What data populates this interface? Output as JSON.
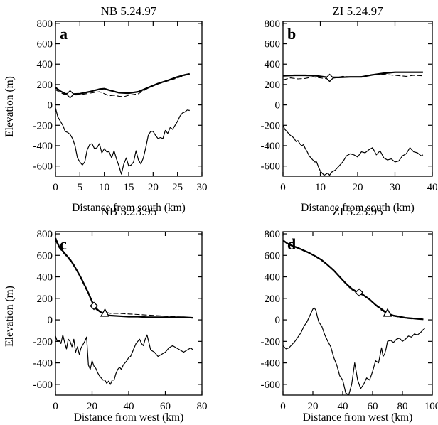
{
  "chart_data": [
    {
      "type": "line",
      "panel_letter": "a",
      "title": "NB 5.24.97",
      "xlabel": "Distance from south (km)",
      "ylabel": "Elevation (m)",
      "xlim": [
        0,
        30
      ],
      "ylim": [
        -700,
        820
      ],
      "xticks": [
        0,
        5,
        10,
        15,
        20,
        25,
        30
      ],
      "yticks": [
        800,
        600,
        400,
        200,
        0,
        -200,
        -400,
        -600
      ],
      "series": [
        {
          "role": "surface",
          "style": "solid-thick",
          "x": [
            0,
            1,
            2,
            3,
            5,
            7,
            9,
            10,
            11,
            13,
            15,
            17,
            19,
            21,
            23,
            25,
            26.5,
            27.5
          ],
          "y": [
            170,
            135,
            110,
            105,
            110,
            130,
            155,
            160,
            145,
            120,
            115,
            130,
            170,
            210,
            240,
            275,
            295,
            305
          ]
        },
        {
          "role": "surface-alt",
          "style": "dashed",
          "x": [
            0,
            1,
            2,
            3,
            5,
            7,
            9,
            10,
            11,
            12,
            13,
            14,
            15,
            17,
            19,
            21,
            23,
            25,
            26.5,
            27.5
          ],
          "y": [
            150,
            120,
            100,
            95,
            100,
            115,
            130,
            110,
            90,
            95,
            85,
            80,
            95,
            110,
            165,
            205,
            235,
            265,
            290,
            300
          ]
        },
        {
          "role": "bed",
          "style": "solid-thin",
          "x": [
            0,
            0.5,
            1,
            1.5,
            2,
            2.5,
            3,
            3.5,
            4,
            4.5,
            5,
            5.5,
            6,
            6.5,
            7,
            7.5,
            8,
            8.5,
            9,
            9.5,
            10,
            10.5,
            11,
            11.5,
            12,
            12.5,
            13,
            13.5,
            14,
            14.5,
            15,
            15.5,
            16,
            16.5,
            17,
            17.5,
            18,
            18.5,
            19,
            19.5,
            20,
            20.5,
            21,
            21.5,
            22,
            22.5,
            23,
            23.5,
            24,
            24.5,
            25,
            25.5,
            26,
            26.5,
            27,
            27.5
          ],
          "y": [
            -30,
            -120,
            -160,
            -200,
            -260,
            -270,
            -290,
            -330,
            -400,
            -520,
            -560,
            -590,
            -560,
            -440,
            -390,
            -380,
            -430,
            -420,
            -380,
            -470,
            -430,
            -460,
            -460,
            -520,
            -450,
            -530,
            -600,
            -680,
            -580,
            -520,
            -600,
            -590,
            -560,
            -450,
            -540,
            -580,
            -520,
            -420,
            -300,
            -260,
            -260,
            -300,
            -330,
            -320,
            -330,
            -250,
            -280,
            -220,
            -240,
            -200,
            -160,
            -110,
            -80,
            -70,
            -50,
            -55
          ]
        }
      ],
      "markers": [
        {
          "shape": "diamond",
          "x": 3,
          "y": 105
        }
      ]
    },
    {
      "type": "line",
      "panel_letter": "b",
      "title": "ZI 5.24.97",
      "xlabel": "Distance from south (km)",
      "ylabel": "",
      "xlim": [
        0,
        40
      ],
      "ylim": [
        -700,
        820
      ],
      "xticks": [
        0,
        10,
        20,
        30,
        40
      ],
      "yticks": [
        800,
        600,
        400,
        200,
        0,
        -200,
        -400,
        -600
      ],
      "series": [
        {
          "role": "surface",
          "style": "solid-thick",
          "x": [
            0,
            3,
            6,
            9,
            12,
            15,
            18,
            21,
            24,
            27,
            30,
            33,
            36,
            37.5
          ],
          "y": [
            285,
            290,
            290,
            285,
            270,
            270,
            275,
            275,
            295,
            310,
            320,
            320,
            320,
            320
          ]
        },
        {
          "role": "surface-alt",
          "style": "dashed",
          "x": [
            0,
            2,
            4,
            6,
            8,
            10,
            12,
            14,
            16,
            18,
            20,
            22,
            24,
            27,
            30,
            33,
            35,
            37.5
          ],
          "y": [
            245,
            265,
            255,
            260,
            275,
            265,
            255,
            265,
            280,
            275,
            275,
            280,
            300,
            300,
            290,
            280,
            290,
            285
          ]
        },
        {
          "role": "bed",
          "style": "solid-thin",
          "x": [
            0,
            0.5,
            1,
            1.5,
            2,
            2.5,
            3,
            3.5,
            4,
            4.5,
            5,
            5.5,
            6,
            6.5,
            7,
            7.5,
            8,
            8.5,
            9,
            9.5,
            10,
            10.5,
            11,
            11.5,
            12,
            12.5,
            13,
            14,
            15,
            16,
            17,
            18,
            19,
            20,
            21,
            22,
            23,
            24,
            25,
            26,
            27,
            28,
            29,
            30,
            31,
            32,
            33,
            34,
            35,
            36,
            37,
            37.5
          ],
          "y": [
            -200,
            -240,
            -260,
            -280,
            -300,
            -310,
            -330,
            -360,
            -350,
            -380,
            -400,
            -390,
            -430,
            -460,
            -500,
            -520,
            -540,
            -560,
            -560,
            -610,
            -650,
            -670,
            -690,
            -680,
            -670,
            -690,
            -660,
            -640,
            -600,
            -560,
            -500,
            -480,
            -490,
            -510,
            -460,
            -470,
            -440,
            -420,
            -490,
            -450,
            -520,
            -540,
            -530,
            -560,
            -550,
            -500,
            -480,
            -420,
            -460,
            -470,
            -500,
            -490
          ]
        }
      ],
      "markers": [
        {
          "shape": "diamond",
          "x": 12.5,
          "y": 265
        }
      ]
    },
    {
      "type": "line",
      "panel_letter": "c",
      "title": "NB 5.23.95",
      "xlabel": "Distance from west (km)",
      "ylabel": "Elevation (m)",
      "xlim": [
        0,
        80
      ],
      "ylim": [
        -700,
        820
      ],
      "xticks": [
        0,
        20,
        40,
        60,
        80
      ],
      "yticks": [
        800,
        600,
        400,
        200,
        0,
        -200,
        -400,
        -600
      ],
      "series": [
        {
          "role": "surface",
          "style": "solid-thick",
          "x": [
            0,
            2,
            4,
            6,
            8,
            10,
            12,
            14,
            16,
            18,
            20,
            22,
            24,
            26,
            28,
            30,
            35,
            40,
            45,
            50,
            55,
            60,
            65,
            70,
            75
          ],
          "y": [
            760,
            680,
            640,
            600,
            560,
            510,
            450,
            390,
            320,
            250,
            170,
            110,
            80,
            60,
            45,
            40,
            35,
            30,
            30,
            25,
            25,
            25,
            25,
            25,
            20
          ]
        },
        {
          "role": "surface-alt",
          "style": "dashed",
          "x": [
            0,
            2,
            4,
            6,
            8,
            10,
            12,
            14,
            16,
            18,
            20,
            22,
            24,
            26,
            28,
            30,
            35,
            40,
            45,
            50,
            55,
            60,
            65,
            70,
            75
          ],
          "y": [
            740,
            670,
            630,
            590,
            550,
            500,
            445,
            380,
            310,
            240,
            160,
            100,
            70,
            60,
            70,
            60,
            60,
            55,
            50,
            45,
            40,
            35,
            30,
            25,
            20
          ]
        },
        {
          "role": "bed",
          "style": "solid-thin",
          "x": [
            0,
            1,
            2,
            3,
            4,
            5,
            6,
            7,
            8,
            9,
            10,
            11,
            12,
            13,
            14,
            15,
            16,
            17,
            18,
            19,
            20,
            21,
            22,
            23,
            24,
            25,
            26,
            27,
            28,
            29,
            30,
            31,
            32,
            33,
            34,
            35,
            36,
            37,
            38,
            39,
            40,
            41,
            42,
            43,
            44,
            45,
            46,
            47,
            48,
            49,
            50,
            52,
            54,
            56,
            58,
            60,
            62,
            64,
            66,
            68,
            70,
            72,
            74,
            75
          ],
          "y": [
            -150,
            -200,
            -190,
            -220,
            -140,
            -210,
            -270,
            -180,
            -200,
            -250,
            -180,
            -300,
            -250,
            -320,
            -260,
            -230,
            -200,
            -160,
            -420,
            -460,
            -380,
            -430,
            -450,
            -490,
            -520,
            -540,
            -560,
            -560,
            -590,
            -570,
            -600,
            -560,
            -560,
            -500,
            -460,
            -440,
            -460,
            -420,
            -400,
            -380,
            -350,
            -340,
            -300,
            -260,
            -220,
            -200,
            -180,
            -220,
            -240,
            -180,
            -140,
            -280,
            -300,
            -340,
            -320,
            -300,
            -260,
            -240,
            -260,
            -280,
            -300,
            -280,
            -260,
            -280
          ]
        }
      ],
      "markers": [
        {
          "shape": "diamond",
          "x": 21,
          "y": 130
        },
        {
          "shape": "triangle",
          "x": 27,
          "y": 60
        }
      ]
    },
    {
      "type": "line",
      "panel_letter": "d",
      "title": "ZI 5.23.95",
      "xlabel": "Distance from west (km)",
      "ylabel": "",
      "xlim": [
        0,
        100
      ],
      "ylim": [
        -700,
        820
      ],
      "xticks": [
        0,
        20,
        40,
        60,
        80,
        100
      ],
      "yticks": [
        800,
        600,
        400,
        200,
        0,
        -200,
        -400,
        -600
      ],
      "series": [
        {
          "role": "surface",
          "style": "solid-thick",
          "x": [
            0,
            3,
            6,
            10,
            14,
            18,
            22,
            26,
            30,
            34,
            38,
            42,
            46,
            50,
            54,
            58,
            62,
            66,
            70,
            74,
            78,
            82,
            86,
            90,
            94
          ],
          "y": [
            740,
            710,
            690,
            670,
            645,
            620,
            590,
            555,
            510,
            460,
            400,
            340,
            290,
            255,
            230,
            190,
            140,
            100,
            60,
            40,
            30,
            20,
            15,
            10,
            5
          ]
        },
        {
          "role": "surface-alt",
          "style": "dashed",
          "x": [
            0,
            3,
            6,
            10,
            14,
            18,
            22,
            26,
            30,
            34,
            38,
            42,
            46,
            50,
            54,
            58,
            62,
            66,
            70,
            74,
            78,
            82,
            86,
            90,
            94
          ],
          "y": [
            735,
            705,
            685,
            665,
            640,
            615,
            585,
            550,
            505,
            455,
            395,
            335,
            280,
            250,
            225,
            185,
            135,
            90,
            55,
            35,
            25,
            15,
            10,
            8,
            5
          ]
        },
        {
          "role": "bed",
          "style": "solid-thin",
          "x": [
            0,
            2,
            4,
            6,
            8,
            10,
            12,
            14,
            16,
            18,
            20,
            21,
            22,
            23,
            24,
            26,
            28,
            30,
            32,
            34,
            36,
            38,
            40,
            42,
            44,
            46,
            48,
            50,
            52,
            54,
            56,
            58,
            60,
            62,
            64,
            66,
            67,
            68,
            69,
            70,
            72,
            74,
            76,
            78,
            80,
            82,
            84,
            86,
            88,
            90,
            92,
            94,
            95
          ],
          "y": [
            -240,
            -270,
            -260,
            -230,
            -200,
            -160,
            -120,
            -60,
            -20,
            40,
            100,
            110,
            90,
            30,
            -20,
            -60,
            -140,
            -200,
            -250,
            -350,
            -420,
            -520,
            -560,
            -680,
            -700,
            -600,
            -400,
            -560,
            -640,
            -600,
            -540,
            -560,
            -480,
            -380,
            -400,
            -260,
            -340,
            -320,
            -270,
            -200,
            -190,
            -210,
            -180,
            -170,
            -200,
            -180,
            -150,
            -160,
            -130,
            -140,
            -120,
            -90,
            -80
          ]
        }
      ],
      "markers": [
        {
          "shape": "diamond",
          "x": 51,
          "y": 255
        },
        {
          "shape": "triangle",
          "x": 70,
          "y": 60
        }
      ]
    }
  ]
}
